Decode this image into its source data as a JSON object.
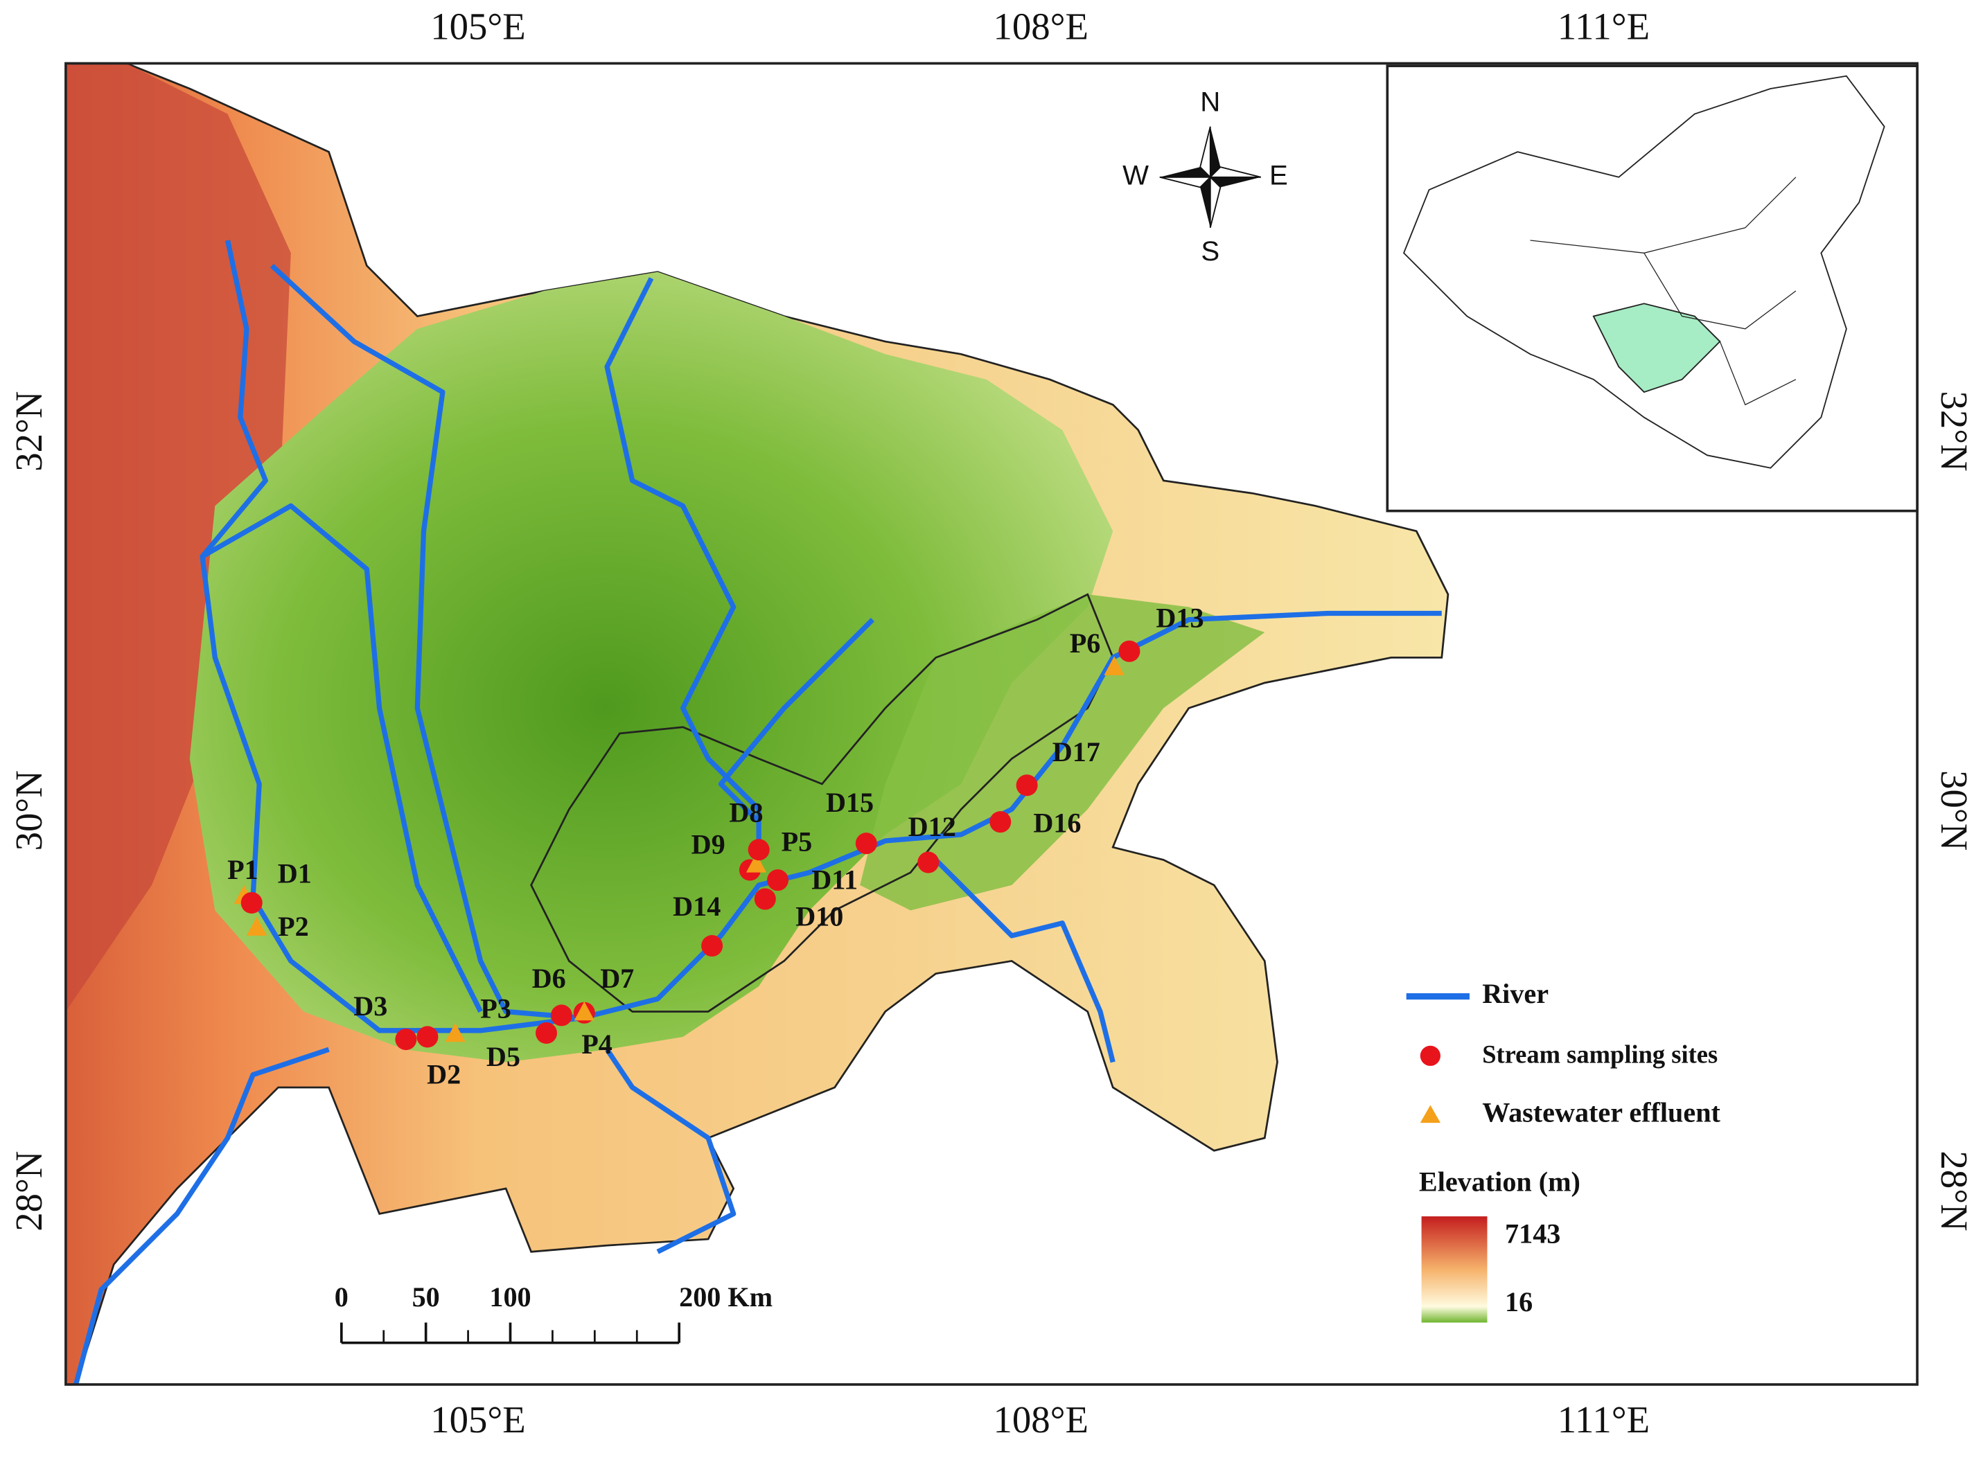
{
  "map": {
    "longitude_labels": [
      "105°E",
      "108°E",
      "111°E"
    ],
    "latitude_labels": [
      "32°N",
      "30°N",
      "28°N"
    ],
    "compass": {
      "north": "N",
      "south": "S",
      "east": "E",
      "west": "W"
    },
    "sites": [
      {
        "label": "P1",
        "kind": "wastewater"
      },
      {
        "label": "D1",
        "kind": "stream"
      },
      {
        "label": "P2",
        "kind": "wastewater"
      },
      {
        "label": "D3",
        "kind": "stream"
      },
      {
        "label": "D2",
        "kind": "stream"
      },
      {
        "label": "P3",
        "kind": "wastewater"
      },
      {
        "label": "D5",
        "kind": "stream"
      },
      {
        "label": "D6",
        "kind": "stream"
      },
      {
        "label": "D7",
        "kind": "stream"
      },
      {
        "label": "P4",
        "kind": "wastewater"
      },
      {
        "label": "D14",
        "kind": "stream"
      },
      {
        "label": "D9",
        "kind": "stream"
      },
      {
        "label": "P5",
        "kind": "wastewater"
      },
      {
        "label": "D8",
        "kind": "stream"
      },
      {
        "label": "D11",
        "kind": "stream"
      },
      {
        "label": "D10",
        "kind": "stream"
      },
      {
        "label": "D15",
        "kind": "stream"
      },
      {
        "label": "D12",
        "kind": "stream"
      },
      {
        "label": "D16",
        "kind": "stream"
      },
      {
        "label": "D17",
        "kind": "stream"
      },
      {
        "label": "P6",
        "kind": "wastewater"
      },
      {
        "label": "D13",
        "kind": "stream"
      }
    ],
    "legend": {
      "river": "River",
      "stream": "Stream sampling sites",
      "wastewater": "Wastewater effluent"
    },
    "elevation": {
      "title": "Elevation (m)",
      "ticks": [
        7143,
        16
      ]
    },
    "scale_bar": {
      "ticks": [
        0,
        50,
        100,
        {
          "value": 200,
          "label": "200 Km"
        }
      ]
    }
  }
}
